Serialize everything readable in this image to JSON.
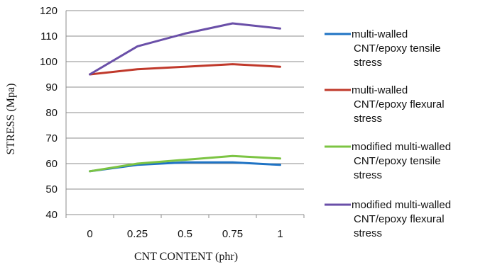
{
  "chart_data": {
    "type": "line",
    "title": "",
    "xlabel": "CNT CONTENT (phr)",
    "ylabel": "STRESS (Mpa)",
    "categories": [
      "0",
      "0.25",
      "0.5",
      "0.75",
      "1"
    ],
    "ylim": [
      40,
      120
    ],
    "yticks": [
      "40",
      "50",
      "60",
      "70",
      "80",
      "90",
      "100",
      "110",
      "120"
    ],
    "grid": "horizontal",
    "legend_position": "right",
    "series": [
      {
        "name_lines": [
          "multi-walled",
          "CNT/epoxy tensile",
          "stress"
        ],
        "color": "#1f73c4",
        "values": [
          57,
          59.5,
          60.5,
          60.5,
          59.5
        ]
      },
      {
        "name_lines": [
          "multi-walled",
          "CNT/epoxy flexural",
          "stress"
        ],
        "color": "#c0392b",
        "values": [
          95,
          97,
          98,
          99,
          98
        ]
      },
      {
        "name_lines": [
          "modified multi-walled",
          "CNT/epoxy tensile",
          "stress"
        ],
        "color": "#7cc443",
        "values": [
          57,
          60,
          61.5,
          63,
          62
        ]
      },
      {
        "name_lines": [
          "modified multi-walled",
          "CNT/epoxy flexural",
          "stress"
        ],
        "color": "#6a4fa8",
        "values": [
          95,
          106,
          111,
          115,
          113
        ]
      }
    ]
  }
}
